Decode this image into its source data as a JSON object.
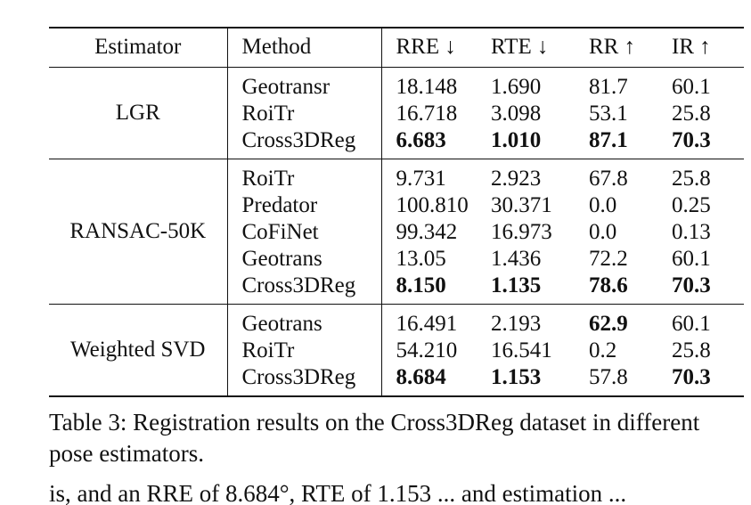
{
  "table": {
    "headers": [
      "Estimator",
      "Method",
      "RRE ↓",
      "RTE ↓",
      "RR ↑",
      "IR ↑"
    ],
    "groups": [
      {
        "estimator": "LGR",
        "rows": [
          {
            "method": "Geotransr",
            "rre": "18.148",
            "rte": "1.690",
            "rr": "81.7",
            "ir": "60.1",
            "bold": []
          },
          {
            "method": "RoiTr",
            "rre": "16.718",
            "rte": "3.098",
            "rr": "53.1",
            "ir": "25.8",
            "bold": []
          },
          {
            "method": "Cross3DReg",
            "rre": "6.683",
            "rte": "1.010",
            "rr": "87.1",
            "ir": "70.3",
            "bold": [
              "rre",
              "rte",
              "rr",
              "ir"
            ]
          }
        ]
      },
      {
        "estimator": "RANSAC-50K",
        "rows": [
          {
            "method": "RoiTr",
            "rre": "9.731",
            "rte": "2.923",
            "rr": "67.8",
            "ir": "25.8",
            "bold": []
          },
          {
            "method": "Predator",
            "rre": "100.810",
            "rte": "30.371",
            "rr": "0.0",
            "ir": "0.25",
            "bold": []
          },
          {
            "method": "CoFiNet",
            "rre": "99.342",
            "rte": "16.973",
            "rr": "0.0",
            "ir": "0.13",
            "bold": []
          },
          {
            "method": "Geotrans",
            "rre": "13.05",
            "rte": "1.436",
            "rr": "72.2",
            "ir": "60.1",
            "bold": []
          },
          {
            "method": "Cross3DReg",
            "rre": "8.150",
            "rte": "1.135",
            "rr": "78.6",
            "ir": "70.3",
            "bold": [
              "rre",
              "rte",
              "rr",
              "ir"
            ]
          }
        ]
      },
      {
        "estimator": "Weighted SVD",
        "rows": [
          {
            "method": "Geotrans",
            "rre": "16.491",
            "rte": "2.193",
            "rr": "62.9",
            "ir": "60.1",
            "bold": [
              "rr"
            ]
          },
          {
            "method": "RoiTr",
            "rre": "54.210",
            "rte": "16.541",
            "rr": "0.2",
            "ir": "25.8",
            "bold": []
          },
          {
            "method": "Cross3DReg",
            "rre": "8.684",
            "rte": "1.153",
            "rr": "57.8",
            "ir": "70.3",
            "bold": [
              "rre",
              "rte",
              "ir"
            ]
          }
        ]
      }
    ]
  },
  "caption": "Table 3: Registration results on the Cross3DReg dataset in different pose estimators.",
  "cutoff_text": "is, and an RRE of 8.684°, RTE of 1.153 ... and estimation ..."
}
